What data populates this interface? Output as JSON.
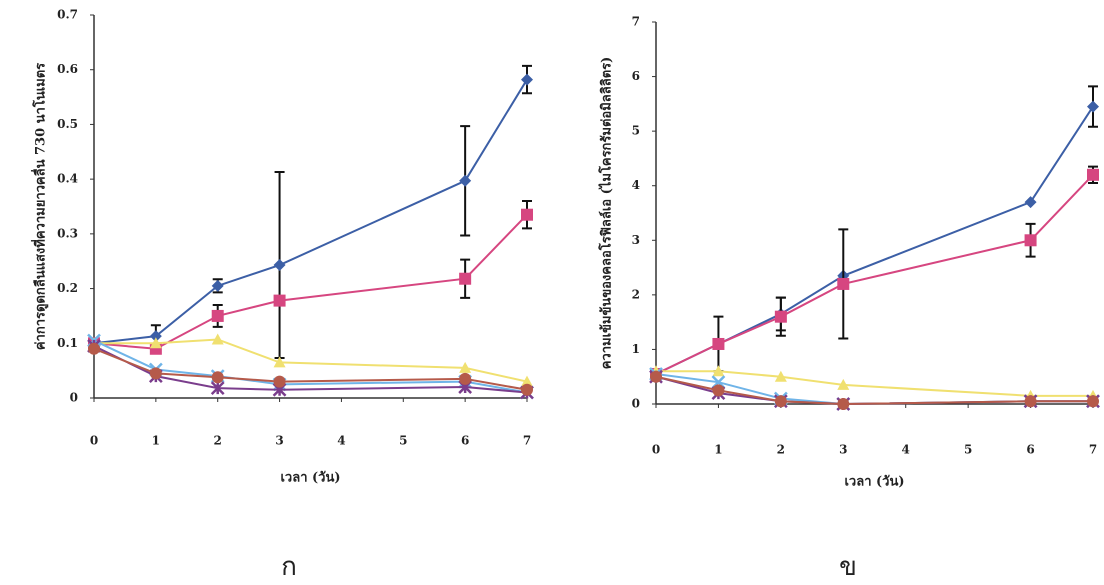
{
  "chart_data": [
    {
      "type": "line",
      "x_label": "เวลา (วัน)",
      "y_label": "ค่าการดูดกลืนแสงที่ความยาวคลื่น 730 นาโนเมตร",
      "panel_label": "ก",
      "x": [
        0,
        1,
        2,
        3,
        6,
        7
      ],
      "xlim": [
        0,
        7
      ],
      "xticks": [
        0,
        1,
        2,
        3,
        4,
        5,
        6,
        7
      ],
      "ylim": [
        0,
        0.7
      ],
      "yticks": [
        0,
        0.1,
        0.2,
        0.3,
        0.4,
        0.5,
        0.6,
        0.7
      ],
      "series": [
        {
          "color": "#3c5fa6",
          "marker": "diamond",
          "values": [
            0.1,
            0.113,
            0.205,
            0.243,
            0.397,
            0.582
          ],
          "errors": [
            null,
            0.02,
            0.012,
            0.17,
            0.1,
            0.025
          ]
        },
        {
          "color": "#d64680",
          "marker": "square",
          "values": [
            0.1,
            0.09,
            0.15,
            0.178,
            0.218,
            0.335
          ],
          "errors": [
            null,
            null,
            0.02,
            null,
            0.035,
            0.025
          ]
        },
        {
          "color": "#f0e070",
          "marker": "triangle",
          "values": [
            0.1,
            0.1,
            0.107,
            0.065,
            0.055,
            0.03
          ],
          "errors": [
            null,
            null,
            null,
            null,
            null,
            null
          ]
        },
        {
          "color": "#6fb4e8",
          "marker": "x",
          "values": [
            0.105,
            0.052,
            0.04,
            0.025,
            0.03,
            0.01
          ],
          "errors": [
            null,
            null,
            null,
            null,
            null,
            null
          ]
        },
        {
          "color": "#7a3d8c",
          "marker": "star",
          "values": [
            0.095,
            0.04,
            0.018,
            0.015,
            0.02,
            0.01
          ],
          "errors": [
            null,
            null,
            null,
            null,
            null,
            null
          ]
        },
        {
          "color": "#b55a4a",
          "marker": "circle",
          "values": [
            0.09,
            0.045,
            0.038,
            0.03,
            0.035,
            0.015
          ],
          "errors": [
            null,
            null,
            null,
            null,
            null,
            null
          ]
        }
      ]
    },
    {
      "type": "line",
      "x_label": "เวลา (วัน)",
      "y_label": "ความเข้มข้นของคลอโรฟิลล์เอ (ไมโครกรัมต่อมิลลิลิตร)",
      "panel_label": "ข",
      "x": [
        0,
        1,
        2,
        3,
        6,
        7
      ],
      "xlim": [
        0,
        7
      ],
      "xticks": [
        0,
        1,
        2,
        3,
        4,
        5,
        6,
        7
      ],
      "ylim": [
        0,
        7
      ],
      "yticks": [
        0,
        1,
        2,
        3,
        4,
        5,
        6,
        7
      ],
      "series": [
        {
          "color": "#3c5fa6",
          "marker": "diamond",
          "values": [
            0.55,
            1.1,
            1.65,
            2.35,
            3.7,
            5.45
          ],
          "errors": [
            null,
            0.5,
            0.3,
            null,
            null,
            0.37
          ]
        },
        {
          "color": "#d64680",
          "marker": "square",
          "values": [
            0.55,
            1.1,
            1.6,
            2.2,
            3.0,
            4.2
          ],
          "errors": [
            null,
            null,
            0.35,
            1.0,
            0.3,
            0.15
          ]
        },
        {
          "color": "#f0e070",
          "marker": "triangle",
          "values": [
            0.6,
            0.6,
            0.5,
            0.35,
            0.15,
            0.15
          ],
          "errors": [
            null,
            null,
            null,
            null,
            null,
            null
          ]
        },
        {
          "color": "#6fb4e8",
          "marker": "x",
          "values": [
            0.55,
            0.4,
            0.1,
            0,
            0.05,
            0.05
          ],
          "errors": [
            null,
            null,
            null,
            null,
            null,
            null
          ]
        },
        {
          "color": "#7a3d8c",
          "marker": "star",
          "values": [
            0.5,
            0.2,
            0.05,
            0,
            0.05,
            0.05
          ],
          "errors": [
            null,
            null,
            null,
            null,
            null,
            null
          ]
        },
        {
          "color": "#b55a4a",
          "marker": "circle",
          "values": [
            0.5,
            0.25,
            0.05,
            0,
            0.05,
            0.05
          ],
          "errors": [
            null,
            null,
            null,
            null,
            null,
            null
          ]
        }
      ]
    }
  ]
}
